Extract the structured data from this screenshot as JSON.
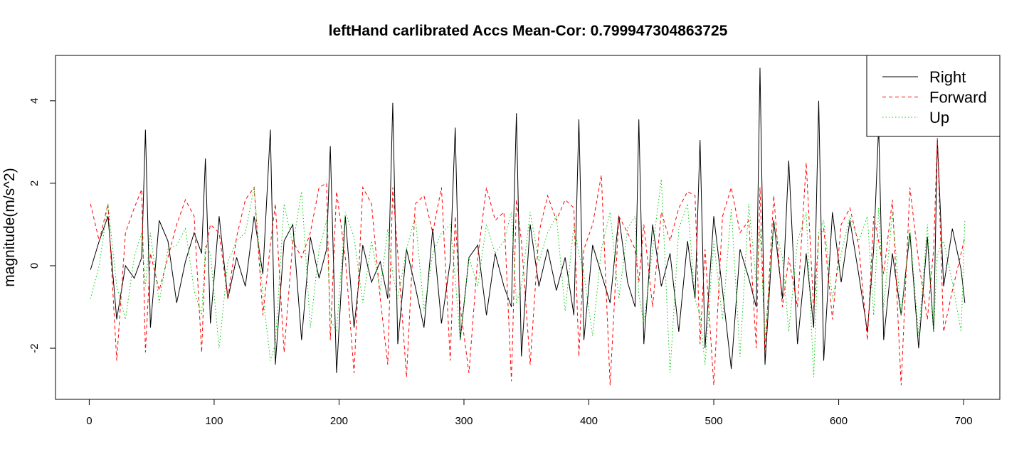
{
  "chart_data": {
    "type": "line",
    "title": "leftHand carlibrated Accs Mean-Cor: 0.799947304863725",
    "y_label": "magnitude(m/s^2)",
    "x": [
      1,
      8,
      15,
      22,
      29,
      36,
      42,
      45,
      49,
      56,
      63,
      70,
      77,
      84,
      90,
      93,
      97,
      104,
      111,
      118,
      125,
      132,
      139,
      145,
      149,
      156,
      163,
      170,
      177,
      184,
      190,
      193,
      198,
      205,
      212,
      219,
      226,
      233,
      239,
      243,
      247,
      254,
      261,
      268,
      275,
      282,
      289,
      293,
      297,
      304,
      311,
      318,
      325,
      332,
      338,
      342,
      346,
      353,
      360,
      367,
      374,
      381,
      388,
      392,
      396,
      403,
      410,
      417,
      424,
      431,
      437,
      440,
      444,
      451,
      458,
      465,
      472,
      479,
      485,
      489,
      493,
      500,
      507,
      514,
      521,
      528,
      534,
      537,
      541,
      548,
      555,
      560,
      567,
      574,
      580,
      584,
      588,
      595,
      602,
      609,
      616,
      623,
      628,
      632,
      636,
      643,
      650,
      657,
      664,
      671,
      676,
      679,
      684,
      691,
      698,
      701
    ],
    "series": [
      {
        "name": "Right",
        "color": "#000000",
        "linestyle": "solid",
        "values": [
          -0.1,
          0.6,
          1.2,
          -1.3,
          0,
          -0.3,
          0.2,
          3.3,
          -1.5,
          1.1,
          0.6,
          -0.9,
          0.1,
          0.8,
          0.3,
          2.6,
          -1.4,
          1.2,
          -0.8,
          0.2,
          -0.5,
          1.2,
          -0.2,
          3.3,
          -2.4,
          0.6,
          1.0,
          -1.8,
          0.7,
          -0.3,
          0.4,
          2.9,
          -2.6,
          1.2,
          -1.5,
          0.5,
          -0.4,
          0.1,
          -0.8,
          3.95,
          -1.9,
          0.4,
          -0.5,
          -1.5,
          0.9,
          -1.4,
          0.1,
          3.35,
          -1.8,
          0.2,
          0.5,
          -1.2,
          0.3,
          -0.5,
          -1.0,
          3.7,
          -2.2,
          1.0,
          -0.5,
          0.4,
          -0.6,
          0.2,
          -1.2,
          3.55,
          -1.8,
          0.5,
          -0.2,
          -0.9,
          1.2,
          -0.4,
          -1.0,
          3.55,
          -1.9,
          1.0,
          -0.5,
          0.3,
          -1.6,
          0.6,
          -0.8,
          3.05,
          -2.0,
          1.2,
          -0.6,
          -2.5,
          0.4,
          -0.3,
          -1.0,
          4.8,
          -2.4,
          1.1,
          -0.8,
          2.55,
          -1.9,
          0.3,
          -1.5,
          4.0,
          -2.3,
          1.3,
          -0.4,
          1.1,
          -0.2,
          -1.6,
          0.4,
          3.4,
          -1.8,
          0.3,
          -1.2,
          0.8,
          -2.0,
          0.7,
          -1.6,
          3.05,
          -0.5,
          0.9,
          -0.1,
          -0.9
        ]
      },
      {
        "name": "Forward",
        "color": "#ff0000",
        "linestyle": "dashed",
        "values": [
          1.5,
          0.6,
          1.5,
          -2.3,
          0.8,
          1.4,
          1.85,
          -2.1,
          0.3,
          -0.6,
          0.2,
          1.0,
          1.6,
          1.2,
          -2.1,
          0.3,
          1.0,
          0.8,
          -0.8,
          0.7,
          1.6,
          1.9,
          -1.2,
          0.5,
          1.5,
          -2.1,
          0.6,
          0.2,
          0.8,
          1.9,
          2.0,
          -1.8,
          1.8,
          0.2,
          -2.6,
          1.9,
          1.5,
          -0.8,
          -2.4,
          1.9,
          0.3,
          -2.7,
          1.5,
          1.7,
          0.8,
          1.9,
          -2.3,
          1.2,
          -1.0,
          -2.6,
          0.2,
          1.9,
          1.1,
          1.3,
          -2.8,
          1.6,
          0.6,
          -2.4,
          0.8,
          1.7,
          1.1,
          1.6,
          1.4,
          -2.2,
          0.4,
          1.0,
          2.2,
          -2.9,
          1.2,
          0.8,
          0.4,
          -0.4,
          1.0,
          -1.0,
          1.3,
          0.6,
          1.4,
          1.8,
          1.7,
          -1.9,
          0.4,
          -2.9,
          1.2,
          1.9,
          0.8,
          1.1,
          -2.0,
          1.9,
          -2.1,
          1.7,
          -1.0,
          0.2,
          -1.0,
          2.5,
          -1.1,
          0.7,
          0.9,
          -1.3,
          1.0,
          1.4,
          0.5,
          -1.8,
          1.2,
          0.6,
          -0.2,
          1.6,
          -2.9,
          1.9,
          0.1,
          -1.3,
          0.4,
          3.1,
          -1.6,
          -0.6,
          0.3,
          0.7
        ]
      },
      {
        "name": "Up",
        "color": "#00cd00",
        "linestyle": "dotted",
        "values": [
          -0.8,
          0.0,
          1.5,
          -0.5,
          -1.3,
          0.2,
          0.8,
          -0.5,
          0.8,
          -0.9,
          0.4,
          0.5,
          0.9,
          -0.6,
          -1.2,
          0.5,
          0.3,
          -2.0,
          0.1,
          0.6,
          0.8,
          1.9,
          -0.7,
          -2.3,
          -1.9,
          1.5,
          0.5,
          1.8,
          -1.5,
          0.4,
          1.1,
          -1.3,
          -1.6,
          1.3,
          0.7,
          -0.9,
          0.6,
          -0.6,
          0.9,
          -0.2,
          -0.8,
          0.4,
          1.2,
          -1.1,
          0.3,
          0.8,
          1.0,
          -0.3,
          -1.8,
          0.2,
          -0.5,
          1.0,
          0.3,
          0.6,
          1.3,
          -0.9,
          -0.5,
          1.3,
          0.1,
          0.8,
          1.2,
          -1.1,
          1.0,
          0.3,
          -0.2,
          -1.7,
          0.4,
          1.3,
          -0.8,
          0.9,
          1.2,
          -0.7,
          -1.4,
          0.4,
          2.1,
          -2.6,
          0.9,
          1.5,
          -0.8,
          -1.2,
          -2.4,
          0.6,
          -1.3,
          1.4,
          -2.2,
          1.5,
          -0.4,
          0.9,
          -1.8,
          1.0,
          0.2,
          -1.6,
          0.6,
          1.3,
          -2.7,
          0.8,
          1.1,
          -0.8,
          0.3,
          1.2,
          0.6,
          1.2,
          -1.2,
          1.4,
          -1.0,
          1.3,
          -1.2,
          0.9,
          -1.7,
          1.0,
          -1.6,
          0.3,
          0.6,
          -0.4,
          -1.6,
          1.1
        ]
      }
    ],
    "xlim": [
      -27,
      729
    ],
    "xticks": [
      0,
      100,
      200,
      300,
      400,
      500,
      600,
      700
    ],
    "ylim": [
      -3.24,
      5.1
    ],
    "yticks": [
      -2,
      0,
      2,
      4
    ],
    "legend": "topright",
    "grid": false
  }
}
